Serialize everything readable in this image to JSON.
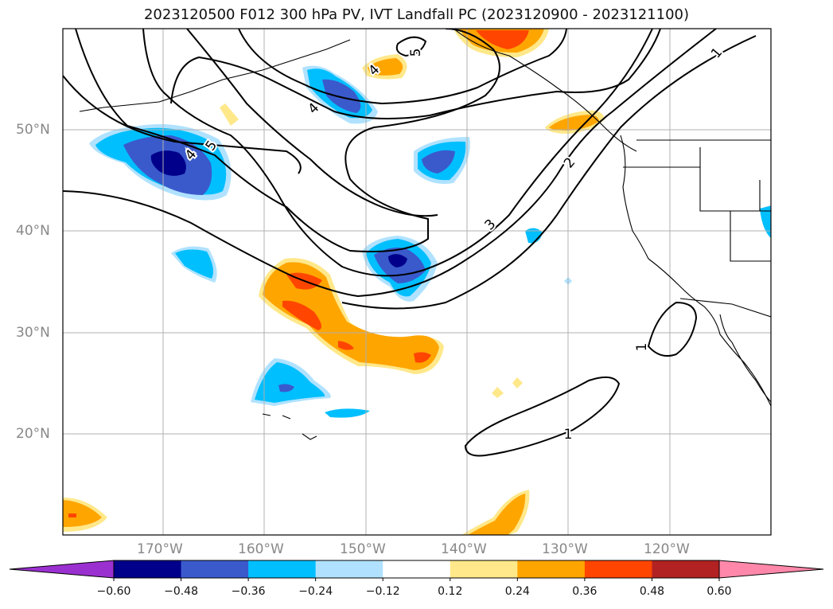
{
  "title": "2023120500 F012 300 hPa PV, IVT Landfall PC (2023120900 - 2023121100)",
  "map": {
    "lat_labels": [
      "50°N",
      "40°N",
      "30°N",
      "20°N"
    ],
    "lon_labels": [
      "170°W",
      "160°W",
      "150°W",
      "140°W",
      "130°W",
      "120°W"
    ],
    "contour_labels": [
      "5",
      "4",
      "4",
      "5",
      "4",
      "3",
      "2",
      "1",
      "1",
      "1"
    ],
    "grid": true
  },
  "colorbar": {
    "ticks": [
      "−0.60",
      "−0.48",
      "−0.36",
      "−0.24",
      "−0.12",
      "0.12",
      "0.24",
      "0.36",
      "0.48",
      "0.60"
    ],
    "colors": [
      "#9b30d0",
      "#00008b",
      "#3a5acc",
      "#00bfff",
      "#b0e2ff",
      "#ffffff",
      "#ffe88a",
      "#ffa500",
      "#ff4500",
      "#b22222",
      "#ff88aa"
    ],
    "extend": "both"
  }
}
